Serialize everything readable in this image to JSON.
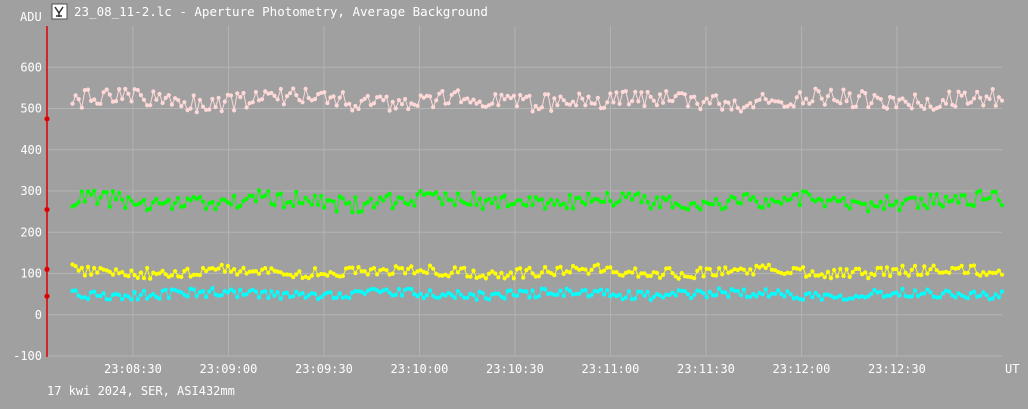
{
  "window": {
    "title": "23_08_11-2.lc - Aperture Photometry, Average Background",
    "icon": "app-logo-icon"
  },
  "footer": {
    "info": "17 kwi 2024, SER, ASI432mm"
  },
  "colors": {
    "background": "#a0a0a0",
    "grid": "#b4b4b4",
    "y_axis": "#e00000",
    "series_colors": [
      "#ffd8d8",
      "#00ff00",
      "#ffff00",
      "#00ffff"
    ]
  },
  "chart_data": {
    "type": "scatter",
    "title": "23_08_11-2.lc - Aperture Photometry, Average Background",
    "ylabel": "ADU",
    "xlabel": "UT",
    "ylim": [
      -100,
      700
    ],
    "xlim": [
      "23:08:03",
      "23:13:03"
    ],
    "yticks": [
      -100,
      0,
      100,
      200,
      300,
      400,
      500,
      600
    ],
    "xticks": [
      "23:08:30",
      "23:09:00",
      "23:09:30",
      "23:10:00",
      "23:10:30",
      "23:11:00",
      "23:11:30",
      "23:12:00",
      "23:12:30"
    ],
    "grid": true,
    "legend": "none",
    "series": [
      {
        "level": 520,
        "spread": 22,
        "start": 475
      },
      {
        "level": 275,
        "spread": 20,
        "start": 255
      },
      {
        "level": 105,
        "spread": 13,
        "start": 110
      },
      {
        "level": 50,
        "spread": 11,
        "start": 45
      }
    ]
  }
}
